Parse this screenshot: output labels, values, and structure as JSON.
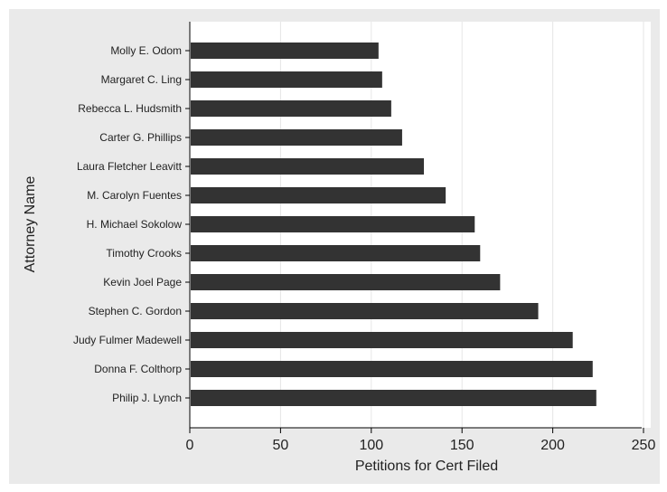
{
  "chart_data": {
    "type": "bar",
    "orientation": "horizontal",
    "xlabel": "Petitions for Cert Filed",
    "ylabel": "Attorney Name",
    "xlim": [
      0,
      250
    ],
    "xticks": [
      0,
      50,
      100,
      150,
      200,
      250
    ],
    "grid": "vertical",
    "bar_color": "#333333",
    "categories": [
      "Molly E. Odom",
      "Margaret C. Ling",
      "Rebecca L. Hudsmith",
      "Carter G. Phillips",
      "Laura Fletcher Leavitt",
      "M. Carolyn Fuentes",
      "H. Michael Sokolow",
      "Timothy Crooks",
      "Kevin Joel Page",
      "Stephen C. Gordon",
      "Judy Fulmer Madewell",
      "Donna F. Colthorp",
      "Philip J. Lynch"
    ],
    "values": [
      104,
      106,
      111,
      117,
      129,
      141,
      157,
      160,
      171,
      192,
      211,
      222,
      224
    ]
  }
}
